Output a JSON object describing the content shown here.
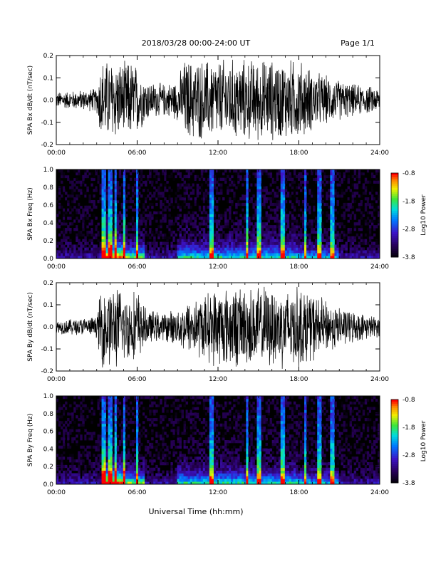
{
  "header": {
    "title": "2018/03/28  00:00-24:00 UT",
    "page": "Page 1/1"
  },
  "footer": {
    "xlabel": "Universal Time (hh:mm)"
  },
  "colors": {
    "background": "#ffffff",
    "trace": "#000000",
    "spectrogram_bg": "#000000"
  },
  "chart_data": [
    {
      "type": "line",
      "id": "bx-time",
      "ylabel": "SPA Bx dB/dt (nT/sec)",
      "xlim": [
        0,
        24
      ],
      "ylim": [
        -0.2,
        0.2
      ],
      "x_ticks": [
        "00:00",
        "06:00",
        "12:00",
        "18:00",
        "24:00"
      ],
      "y_ticks": [
        "-0.2",
        "-0.1",
        "0.0",
        "0.1",
        "0.2"
      ],
      "envelope": {
        "x": [
          0,
          1,
          2,
          3,
          3.3,
          3.5,
          4,
          4.5,
          5,
          5.5,
          6,
          6.5,
          7,
          8,
          9,
          9.5,
          10,
          11,
          12,
          13,
          14,
          15,
          16,
          17,
          17.5,
          18,
          19,
          20,
          21,
          22,
          23,
          24
        ],
        "amplitude": [
          0.04,
          0.045,
          0.05,
          0.06,
          0.2,
          0.2,
          0.2,
          0.2,
          0.18,
          0.2,
          0.17,
          0.12,
          0.09,
          0.08,
          0.1,
          0.2,
          0.2,
          0.2,
          0.2,
          0.2,
          0.2,
          0.2,
          0.2,
          0.2,
          0.2,
          0.2,
          0.15,
          0.12,
          0.1,
          0.08,
          0.07,
          0.06
        ]
      }
    },
    {
      "type": "heatmap",
      "id": "bx-spec",
      "ylabel": "SPA Bx Freq (Hz)",
      "xlim": [
        0,
        24
      ],
      "ylim": [
        0,
        1.0
      ],
      "x_ticks": [
        "00:00",
        "06:00",
        "12:00",
        "18:00",
        "24:00"
      ],
      "y_ticks": [
        "0.0",
        "0.2",
        "0.4",
        "0.6",
        "0.8",
        "1.0"
      ],
      "colorbar": {
        "label": "Log10 Power",
        "range": [
          -3.8,
          -0.8
        ],
        "ticks": [
          "-0.8",
          "-1.8",
          "-2.8",
          "-3.8"
        ]
      },
      "bursts": [
        3.5,
        4.0,
        4.4,
        5.0,
        6.0,
        11.5,
        14.2,
        15.0,
        16.8,
        18.5,
        19.5,
        20.5
      ]
    },
    {
      "type": "line",
      "id": "by-time",
      "ylabel": "SPA By dB/dt (nT/sec)",
      "xlim": [
        0,
        24
      ],
      "ylim": [
        -0.2,
        0.2
      ],
      "x_ticks": [
        "00:00",
        "06:00",
        "12:00",
        "18:00",
        "24:00"
      ],
      "y_ticks": [
        "-0.2",
        "-0.1",
        "0.0",
        "0.1",
        "0.2"
      ],
      "envelope": {
        "x": [
          0,
          1,
          2,
          3,
          3.3,
          3.5,
          4,
          4.5,
          5,
          5.5,
          6,
          6.5,
          7,
          8,
          9,
          9.5,
          10,
          11,
          12,
          13,
          14,
          15,
          16,
          17,
          17.5,
          18,
          19,
          20,
          21,
          22,
          23,
          24
        ],
        "amplitude": [
          0.035,
          0.04,
          0.045,
          0.05,
          0.2,
          0.2,
          0.2,
          0.2,
          0.18,
          0.16,
          0.2,
          0.1,
          0.08,
          0.07,
          0.09,
          0.12,
          0.14,
          0.16,
          0.2,
          0.2,
          0.2,
          0.2,
          0.2,
          0.2,
          0.2,
          0.2,
          0.17,
          0.13,
          0.1,
          0.08,
          0.06,
          0.05
        ]
      }
    },
    {
      "type": "heatmap",
      "id": "by-spec",
      "ylabel": "SPA By Freq (Hz)",
      "xlim": [
        0,
        24
      ],
      "ylim": [
        0,
        1.0
      ],
      "x_ticks": [
        "00:00",
        "06:00",
        "12:00",
        "18:00",
        "24:00"
      ],
      "y_ticks": [
        "0.0",
        "0.2",
        "0.4",
        "0.6",
        "0.8",
        "1.0"
      ],
      "colorbar": {
        "label": "Log10 Power",
        "range": [
          -3.8,
          -0.8
        ],
        "ticks": [
          "-0.8",
          "-1.8",
          "-2.8",
          "-3.8"
        ]
      },
      "bursts": [
        3.5,
        4.0,
        4.4,
        5.0,
        6.0,
        11.5,
        14.2,
        15.0,
        16.8,
        18.5,
        19.5,
        20.5
      ]
    }
  ]
}
